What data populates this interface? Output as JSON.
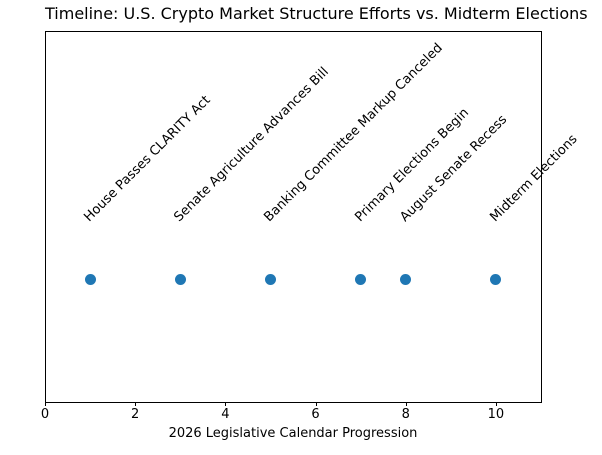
{
  "chart_data": {
    "type": "scatter",
    "title": "Timeline: U.S. Crypto Market Structure Efforts vs. Midterm Elections",
    "xlabel": "2026 Legislative Calendar Progression",
    "ylabel": "",
    "xlim": [
      0,
      11
    ],
    "xticks": [
      0,
      2,
      4,
      6,
      8,
      10
    ],
    "yticks": [],
    "grid": false,
    "legend": "none",
    "marker_color": "#1f77b4",
    "annotation_rotation_deg": 45,
    "events": [
      {
        "x": 1,
        "label": "House Passes CLARITY Act"
      },
      {
        "x": 3,
        "label": "Senate Agriculture Advances Bill"
      },
      {
        "x": 5,
        "label": "Banking Committee Markup Canceled"
      },
      {
        "x": 7,
        "label": "Primary Elections Begin"
      },
      {
        "x": 8,
        "label": "August Senate Recess"
      },
      {
        "x": 10,
        "label": "Midterm Elections"
      }
    ]
  }
}
